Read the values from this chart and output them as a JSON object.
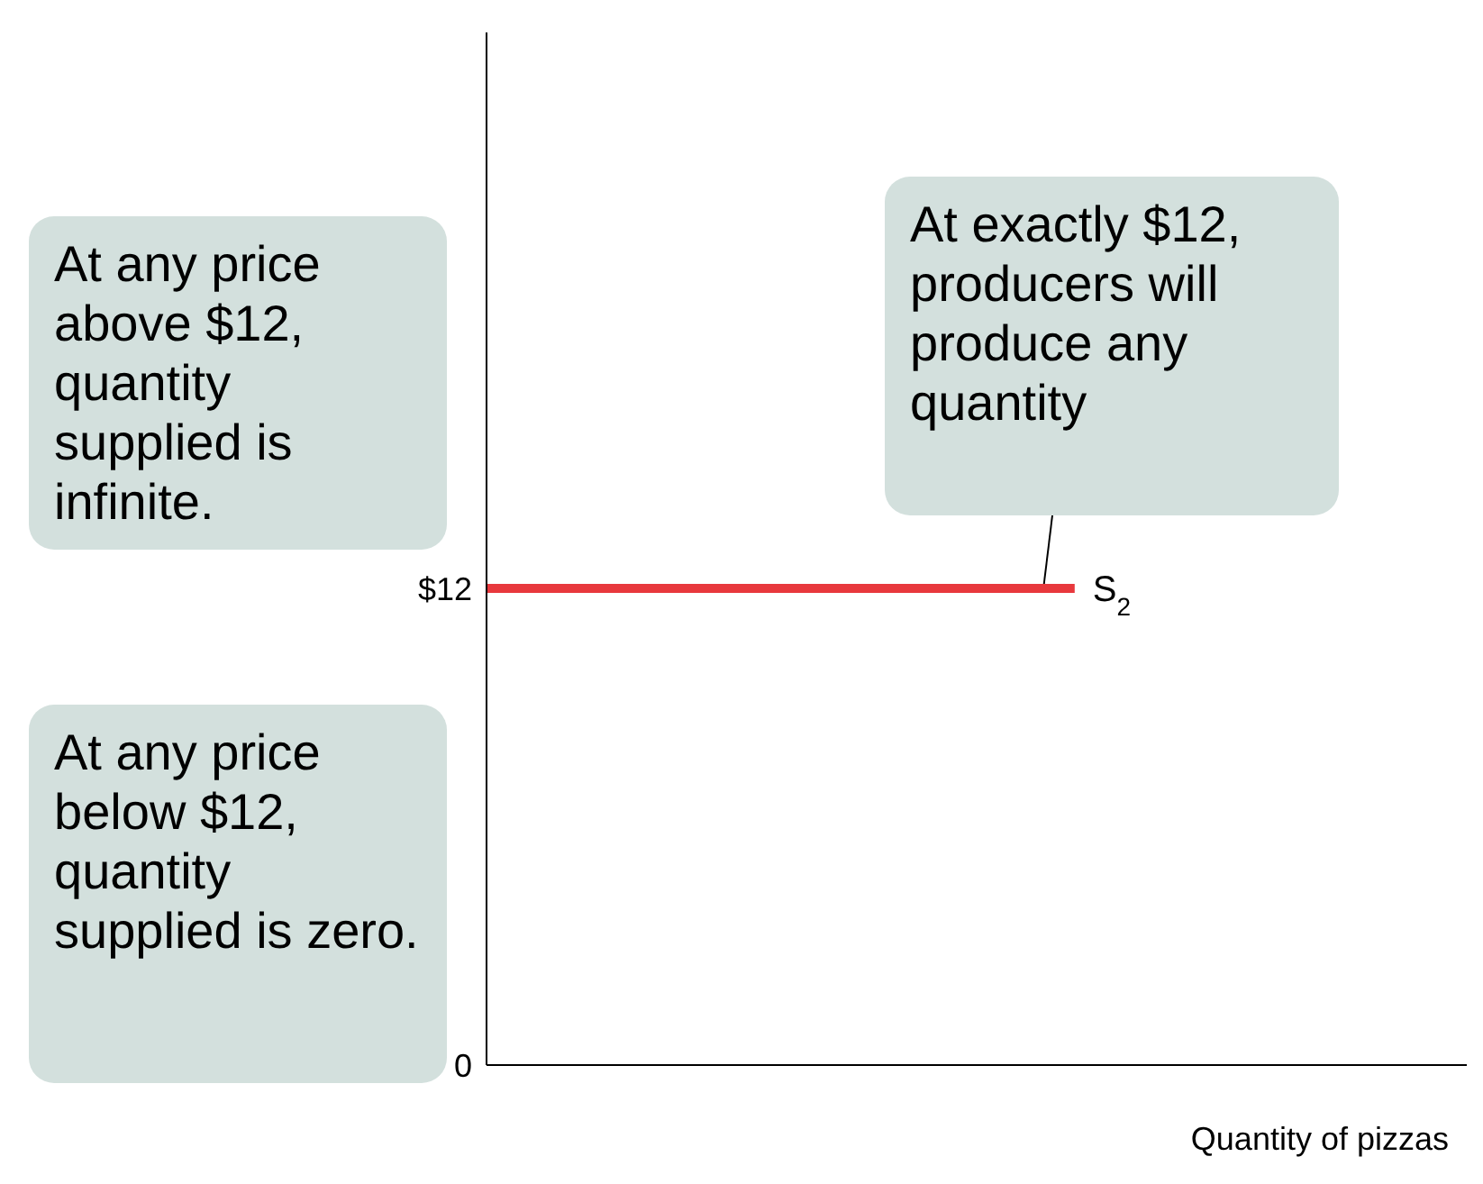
{
  "chart_data": {
    "type": "line",
    "xlabel": "Quantity of pizzas",
    "categories": [
      null,
      null,
      null,
      null,
      null
    ],
    "series": [
      {
        "name": "S$_{2}$",
        "color": "#e8383d",
        "values": [
          12,
          12,
          12,
          12,
          null
        ]
      }
    ],
    "ylim": [
      0,
      26
    ],
    "yticks": [
      {
        "value": 0,
        "label": "0"
      },
      {
        "value": 12,
        "label": "$12"
      }
    ],
    "tick_labels": "y",
    "annotations": [
      "At exactly $12, producers will produce any quantity",
      "At any price above $12, quantity supplied is infinite.",
      "At any price below $12, quantity supplied is zero."
    ]
  }
}
